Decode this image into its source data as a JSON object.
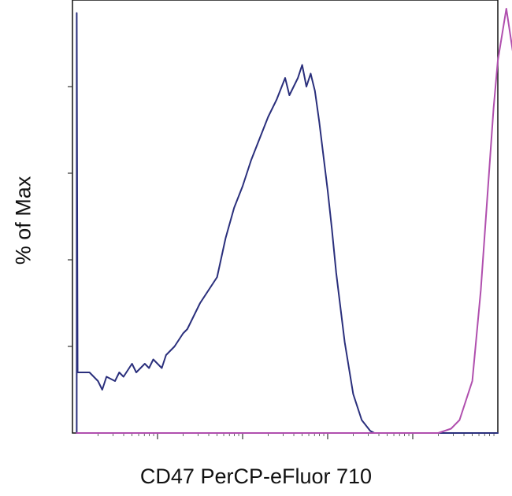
{
  "chart_data": {
    "type": "line",
    "title": "",
    "xlabel": "CD47 PerCP-eFluor 710",
    "ylabel": "% of Max",
    "xscale": "log",
    "xlim": [
      0,
      5
    ],
    "ylim": [
      0,
      100
    ],
    "xticks": [
      1,
      2,
      3,
      4
    ],
    "yticks": [
      20,
      40,
      60,
      80
    ],
    "grid": false,
    "legend": "none",
    "series": [
      {
        "color": "#2a2f7c",
        "x": [
          0.05,
          0.05,
          0.06,
          0.1,
          0.2,
          0.3,
          0.35,
          0.4,
          0.5,
          0.55,
          0.6,
          0.7,
          0.75,
          0.85,
          0.9,
          0.95,
          1.05,
          1.1,
          1.2,
          1.3,
          1.35,
          1.5,
          1.7,
          1.8,
          1.9,
          2.0,
          2.1,
          2.2,
          2.3,
          2.4,
          2.5,
          2.55,
          2.6,
          2.65,
          2.7,
          2.75,
          2.8,
          2.85,
          2.9,
          3.0,
          3.05,
          3.1,
          3.2,
          3.3,
          3.4,
          3.5,
          3.55,
          3.6,
          5.0
        ],
        "y": [
          0,
          97,
          14,
          14,
          14,
          12,
          10,
          13,
          12,
          14,
          13,
          16,
          14,
          16,
          15,
          17,
          15,
          18,
          20,
          23,
          24,
          30,
          36,
          45,
          52,
          57,
          63,
          68,
          73,
          77,
          82,
          78,
          80,
          82,
          85,
          80,
          83,
          79,
          72,
          56,
          47,
          37,
          21,
          9,
          3,
          0.5,
          0,
          0,
          0
        ]
      },
      {
        "color": "#b04fae",
        "x": [
          0.05,
          4.3,
          4.45,
          4.55,
          4.7,
          4.8,
          4.85,
          4.95,
          5.0,
          5.1,
          5.2,
          5.35,
          5.5,
          5.7
        ],
        "y": [
          0,
          0,
          1,
          3,
          12,
          33,
          47,
          75,
          86,
          98,
          85,
          40,
          8,
          0
        ]
      }
    ]
  }
}
